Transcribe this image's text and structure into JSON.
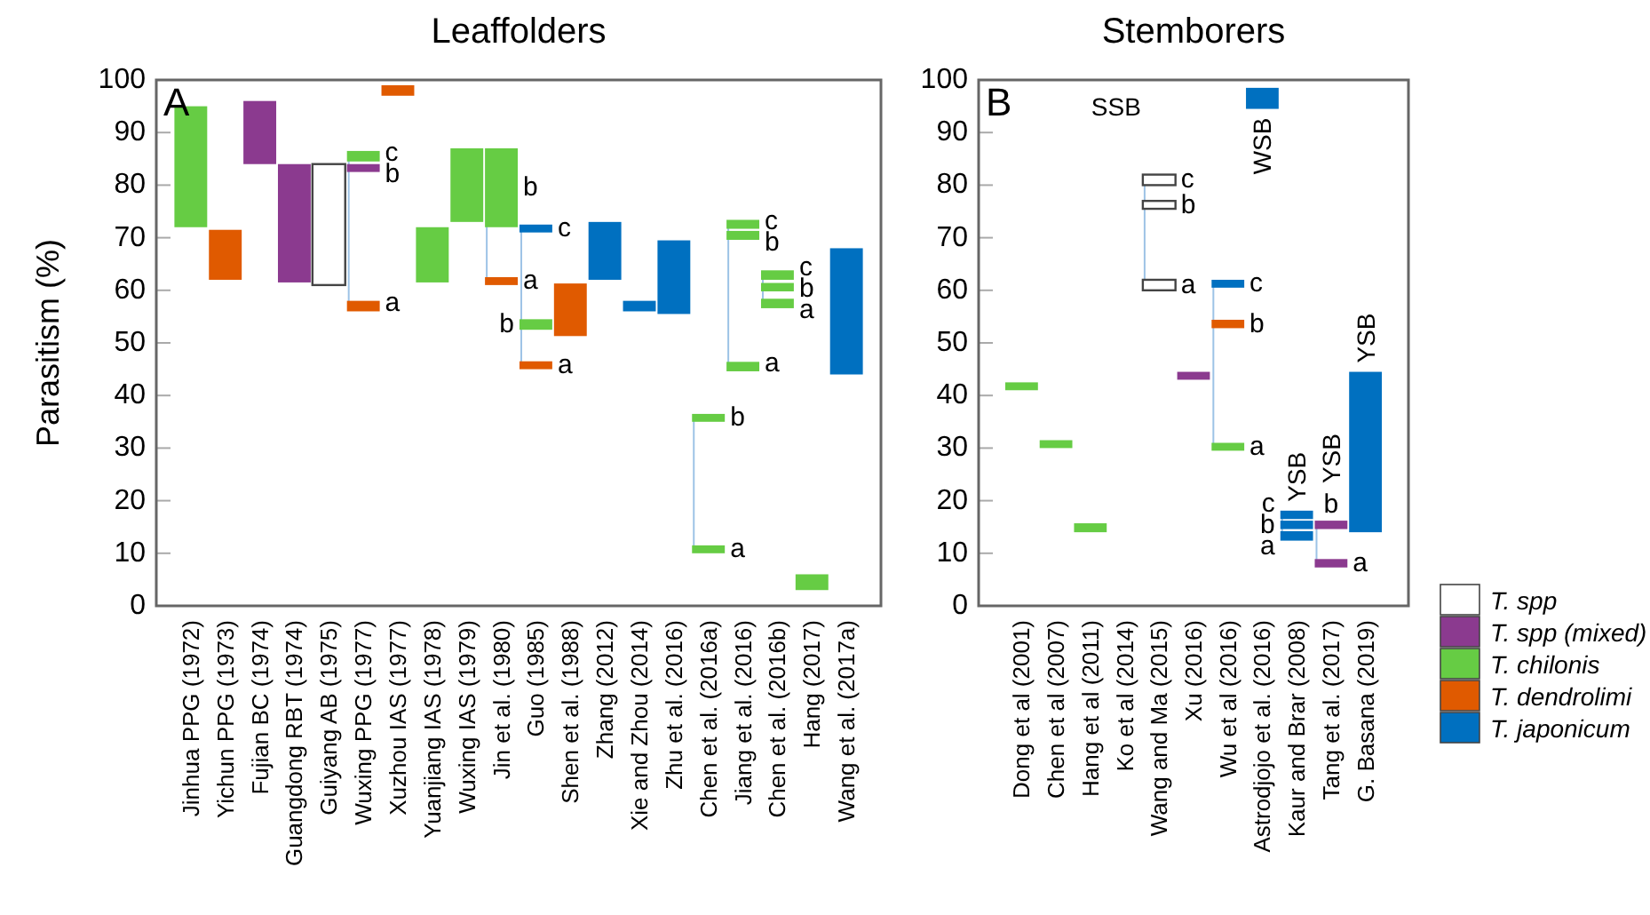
{
  "chart_data": [
    {
      "type": "bar",
      "title": "Leaffolders",
      "ylabel": "Parasitism (%)",
      "ylim": [
        0,
        100
      ],
      "yticks": [
        0,
        10,
        20,
        30,
        40,
        50,
        60,
        70,
        80,
        90,
        100
      ],
      "legend": false,
      "categories": [
        "Jinhua PPG (1972)",
        "Yichun PPG (1973)",
        "Fujian BC (1974)",
        "Guangdong RBT (1974)",
        "Guiyang AB (1975)",
        "Wuxing PPG (1977)",
        "Xuzhou IAS (1977)",
        "Yuanjiang IAS (1978)",
        "Wuxing IAS (1979)",
        "Jin et al. (1980)",
        "Guo (1985)",
        "Shen et al. (1988)",
        "Zhang (2012)",
        "Xie and Zhou (2014)",
        "Zhu et al. (2016)",
        "Chen et al. (2016a)",
        "Jiang et al. (2016)",
        "Chen et al. (2016b)",
        "Hang (2017)",
        "Wang et al. (2017a)"
      ],
      "series": [
        {
          "color": "#ffffff",
          "base": [
            null,
            null,
            null,
            null,
            61,
            null,
            null,
            null,
            null,
            null,
            null,
            null,
            null,
            null,
            null,
            null,
            null,
            null,
            null,
            null
          ],
          "values": [
            null,
            null,
            null,
            null,
            23,
            null,
            null,
            null,
            null,
            null,
            null,
            null,
            null,
            null,
            null,
            null,
            null,
            null,
            null,
            null
          ]
        },
        {
          "color": "#8b3a8f",
          "base": [
            null,
            null,
            84,
            61.5,
            null,
            82.5,
            null,
            null,
            null,
            null,
            null,
            null,
            null,
            null,
            null,
            null,
            null,
            null,
            null,
            null
          ],
          "values": [
            null,
            null,
            12,
            22.5,
            null,
            1.5,
            null,
            null,
            null,
            null,
            null,
            null,
            null,
            null,
            null,
            null,
            null,
            null,
            null,
            null
          ]
        },
        {
          "color": "#66cc44",
          "base": [
            72,
            null,
            null,
            null,
            null,
            84.5,
            null,
            61.5,
            73,
            72,
            52.5,
            null,
            null,
            null,
            null,
            35,
            71.7,
            62,
            3,
            null
          ],
          "values": [
            23,
            null,
            null,
            null,
            null,
            2,
            null,
            10.5,
            14,
            15,
            2,
            null,
            null,
            null,
            null,
            1.5,
            1.7,
            1.8,
            3,
            null
          ]
        },
        {
          "color": "#66cc44",
          "base": [
            null,
            null,
            null,
            null,
            null,
            null,
            null,
            null,
            null,
            null,
            null,
            null,
            null,
            null,
            null,
            10,
            69.6,
            59.8,
            null,
            null
          ],
          "values": [
            null,
            null,
            null,
            null,
            null,
            null,
            null,
            null,
            null,
            null,
            null,
            null,
            null,
            null,
            null,
            1.5,
            1.7,
            1.6,
            null,
            null
          ]
        },
        {
          "color": "#66cc44",
          "base": [
            null,
            null,
            null,
            null,
            null,
            null,
            null,
            null,
            null,
            null,
            null,
            null,
            null,
            null,
            null,
            null,
            44.6,
            56.6,
            null,
            null
          ],
          "values": [
            null,
            null,
            null,
            null,
            null,
            null,
            null,
            null,
            null,
            null,
            null,
            null,
            null,
            null,
            null,
            null,
            1.8,
            1.8,
            null,
            null
          ]
        },
        {
          "color": "#e05a00",
          "base": [
            null,
            62,
            null,
            null,
            null,
            56,
            97,
            null,
            null,
            61,
            45,
            51.3,
            null,
            null,
            null,
            null,
            null,
            null,
            null,
            null
          ],
          "values": [
            null,
            9.5,
            null,
            null,
            null,
            2,
            2,
            null,
            null,
            1.5,
            1.5,
            10,
            null,
            null,
            null,
            null,
            null,
            null,
            null,
            null
          ]
        },
        {
          "color": "#0070c0",
          "base": [
            null,
            null,
            null,
            null,
            null,
            null,
            null,
            null,
            null,
            null,
            71,
            null,
            62,
            56,
            55.5,
            null,
            null,
            null,
            null,
            44
          ],
          "values": [
            null,
            null,
            null,
            null,
            null,
            null,
            null,
            null,
            null,
            null,
            1.5,
            null,
            11,
            2,
            14,
            null,
            null,
            null,
            null,
            24
          ]
        }
      ],
      "annotations": [
        "A",
        {
          "text": "c",
          "x": "Wuxing PPG (1977)",
          "y": 86.5
        },
        {
          "text": "b",
          "x": "Wuxing PPG (1977)",
          "y": 84
        },
        {
          "text": "a",
          "x": "Wuxing PPG (1977)",
          "y": 58
        },
        {
          "text": "b",
          "x": "Jin et al. (1980)",
          "y": 87
        },
        {
          "text": "a",
          "x": "Jin et al. (1980)",
          "y": 62.5
        },
        {
          "text": "c",
          "x": "Guo (1985)",
          "y": 72.5
        },
        {
          "text": "b",
          "x": "Guo (1985)",
          "y": 54.5
        },
        {
          "text": "a",
          "x": "Guo (1985)",
          "y": 46.5
        },
        {
          "text": "b",
          "x": "Chen et al. (2016a)",
          "y": 36.5
        },
        {
          "text": "a",
          "x": "Chen et al. (2016a)",
          "y": 11.5
        },
        {
          "text": "c",
          "x": "Jiang et al. (2016)",
          "y": 73.4
        },
        {
          "text": "b",
          "x": "Jiang et al. (2016)",
          "y": 71.3
        },
        {
          "text": "a",
          "x": "Jiang et al. (2016)",
          "y": 46.4
        },
        {
          "text": "c",
          "x": "Chen et al. (2016b)",
          "y": 63.8
        },
        {
          "text": "b",
          "x": "Chen et al. (2016b)",
          "y": 61.4
        },
        {
          "text": "a",
          "x": "Chen et al. (2016b)",
          "y": 58.4
        }
      ]
    },
    {
      "type": "bar",
      "title": "Stemborers",
      "ylim": [
        0,
        100
      ],
      "yticks": [
        0,
        10,
        20,
        30,
        40,
        50,
        60,
        70,
        80,
        90,
        100
      ],
      "legend": "right",
      "categories": [
        "Dong et al (2001)",
        "Chen et al (2007)",
        "Hang et al (2011)",
        "Ko et al (2014)",
        "Wang and Ma (2015)",
        "Xu (2016)",
        "Wu et al (2016)",
        "Astrodjojo et al. (2016)",
        "Kaur and Brar (2008)",
        "Tang et al. (2017)",
        "G. Basana (2019)"
      ],
      "series": [
        {
          "name": "T. spp",
          "color": "#ffffff",
          "base": [
            null,
            null,
            null,
            null,
            60,
            null,
            null,
            null,
            null,
            null,
            null
          ],
          "values": [
            null,
            null,
            null,
            null,
            2,
            null,
            null,
            null,
            null,
            null,
            null
          ]
        },
        {
          "color": "#ffffff",
          "base": [
            null,
            null,
            null,
            null,
            75.5,
            null,
            null,
            null,
            null,
            null,
            null
          ],
          "values": [
            null,
            null,
            null,
            null,
            1.5,
            null,
            null,
            null,
            null,
            null,
            null
          ]
        },
        {
          "color": "#ffffff",
          "base": [
            null,
            null,
            null,
            null,
            80,
            null,
            null,
            null,
            null,
            null,
            null
          ],
          "values": [
            null,
            null,
            null,
            null,
            2,
            null,
            null,
            null,
            null,
            null,
            null
          ]
        },
        {
          "name": "T. spp (mixed)",
          "color": "#8b3a8f",
          "base": [
            null,
            null,
            null,
            null,
            null,
            43,
            null,
            null,
            null,
            7.3,
            null
          ],
          "values": [
            null,
            null,
            null,
            null,
            null,
            1.5,
            null,
            null,
            null,
            1.6,
            null
          ]
        },
        {
          "color": "#8b3a8f",
          "base": [
            null,
            null,
            null,
            null,
            null,
            null,
            null,
            null,
            null,
            14.6,
            null
          ],
          "values": [
            null,
            null,
            null,
            null,
            null,
            null,
            null,
            null,
            null,
            1.6,
            null
          ]
        },
        {
          "name": "T. chilonis",
          "color": "#66cc44",
          "base": [
            41,
            30,
            14,
            null,
            null,
            null,
            29.5,
            null,
            null,
            null,
            null
          ],
          "values": [
            1.5,
            1.5,
            1.7,
            null,
            null,
            null,
            1.5,
            null,
            null,
            null,
            null
          ]
        },
        {
          "name": "T. dendrolimi",
          "color": "#e05a00",
          "base": [
            null,
            null,
            null,
            null,
            null,
            null,
            52.8,
            null,
            null,
            null,
            null
          ],
          "values": [
            null,
            null,
            null,
            null,
            null,
            null,
            1.6,
            null,
            null,
            null,
            null
          ]
        },
        {
          "name": "T. japonicum",
          "color": "#0070c0",
          "base": [
            null,
            null,
            null,
            null,
            null,
            null,
            60.5,
            94.5,
            12.4,
            null,
            14
          ],
          "values": [
            null,
            null,
            null,
            null,
            null,
            null,
            1.5,
            4,
            1.8,
            null,
            30.5
          ]
        },
        {
          "color": "#0070c0",
          "base": [
            null,
            null,
            null,
            null,
            null,
            null,
            null,
            null,
            14.6,
            null,
            null
          ],
          "values": [
            null,
            null,
            null,
            null,
            null,
            null,
            null,
            null,
            1.6,
            null,
            null
          ]
        },
        {
          "color": "#0070c0",
          "base": [
            null,
            null,
            null,
            null,
            null,
            null,
            null,
            null,
            16.5,
            null,
            null
          ],
          "values": [
            null,
            null,
            null,
            null,
            null,
            null,
            null,
            null,
            1.6,
            null,
            null
          ]
        }
      ],
      "annotations": [
        "B",
        "SSB",
        {
          "text": "c",
          "x": "Wang and Ma (2015)",
          "y": 82
        },
        {
          "text": "b",
          "x": "Wang and Ma (2015)",
          "y": 77
        },
        {
          "text": "a",
          "x": "Wang and Ma (2015)",
          "y": 62
        },
        {
          "text": "c",
          "x": "Wu et al (2016)",
          "y": 62
        },
        {
          "text": "b",
          "x": "Wu et al (2016)",
          "y": 54.4
        },
        {
          "text": "a",
          "x": "Wu et al (2016)",
          "y": 31
        },
        {
          "text": "WSB",
          "x": "Astrodjojo et al. (2016)",
          "y": 94.5
        },
        {
          "text": "c",
          "x": "Kaur and Brar (2008)",
          "y": 18.1
        },
        {
          "text": "b",
          "x": "Kaur and Brar (2008)",
          "y": 16.2
        },
        {
          "text": "a",
          "x": "Kaur and Brar (2008)",
          "y": 14.2
        },
        {
          "text": "YSB",
          "x": "Kaur and Brar (2008)",
          "y": 18.1
        },
        {
          "text": "b",
          "x": "Tang et al. (2017)",
          "y": 16.2
        },
        {
          "text": "a",
          "x": "Tang et al. (2017)",
          "y": 8.9
        },
        {
          "text": "YSB",
          "x": "Tang et al. (2017)",
          "y": 16.2
        },
        {
          "text": "YSB",
          "x": "G. Basana (2019)",
          "y": 44.5
        }
      ]
    }
  ]
}
